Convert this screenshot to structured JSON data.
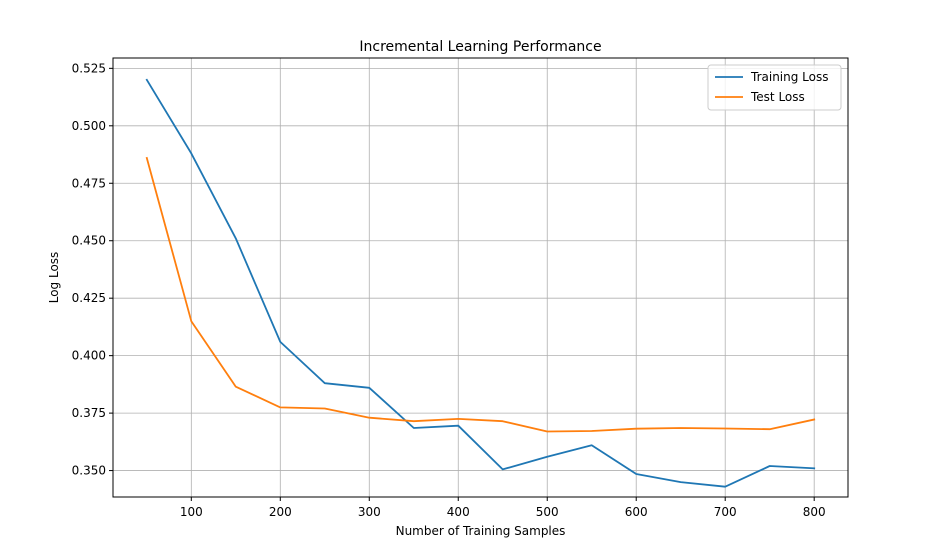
{
  "chart_data": {
    "type": "line",
    "title": "Incremental Learning Performance",
    "xlabel": "Number of Training Samples",
    "ylabel": "Log Loss",
    "xlim": [
      12,
      838
    ],
    "ylim": [
      0.3385,
      0.5295
    ],
    "x_ticks": [
      100,
      200,
      300,
      400,
      500,
      600,
      700,
      800
    ],
    "x_tick_labels": [
      "100",
      "200",
      "300",
      "400",
      "500",
      "600",
      "700",
      "800"
    ],
    "y_ticks": [
      0.35,
      0.375,
      0.4,
      0.425,
      0.45,
      0.475,
      0.5,
      0.525
    ],
    "y_tick_labels": [
      "0.350",
      "0.375",
      "0.400",
      "0.425",
      "0.450",
      "0.475",
      "0.500",
      "0.525"
    ],
    "grid": true,
    "legend_position": "upper right",
    "x": [
      50,
      100,
      150,
      200,
      250,
      300,
      350,
      400,
      450,
      500,
      550,
      600,
      650,
      700,
      750,
      800
    ],
    "series": [
      {
        "name": "Training Loss",
        "color": "#1f77b4",
        "values": [
          0.52,
          0.488,
          0.451,
          0.406,
          0.388,
          0.386,
          0.3685,
          0.3695,
          0.3505,
          0.356,
          0.361,
          0.3485,
          0.345,
          0.343,
          0.352,
          0.351
        ]
      },
      {
        "name": "Test Loss",
        "color": "#ff7f0e",
        "values": [
          0.486,
          0.415,
          0.3865,
          0.3775,
          0.377,
          0.373,
          0.3715,
          0.3725,
          0.3715,
          0.367,
          0.3672,
          0.3682,
          0.3685,
          0.3683,
          0.368,
          0.3722
        ]
      }
    ]
  }
}
